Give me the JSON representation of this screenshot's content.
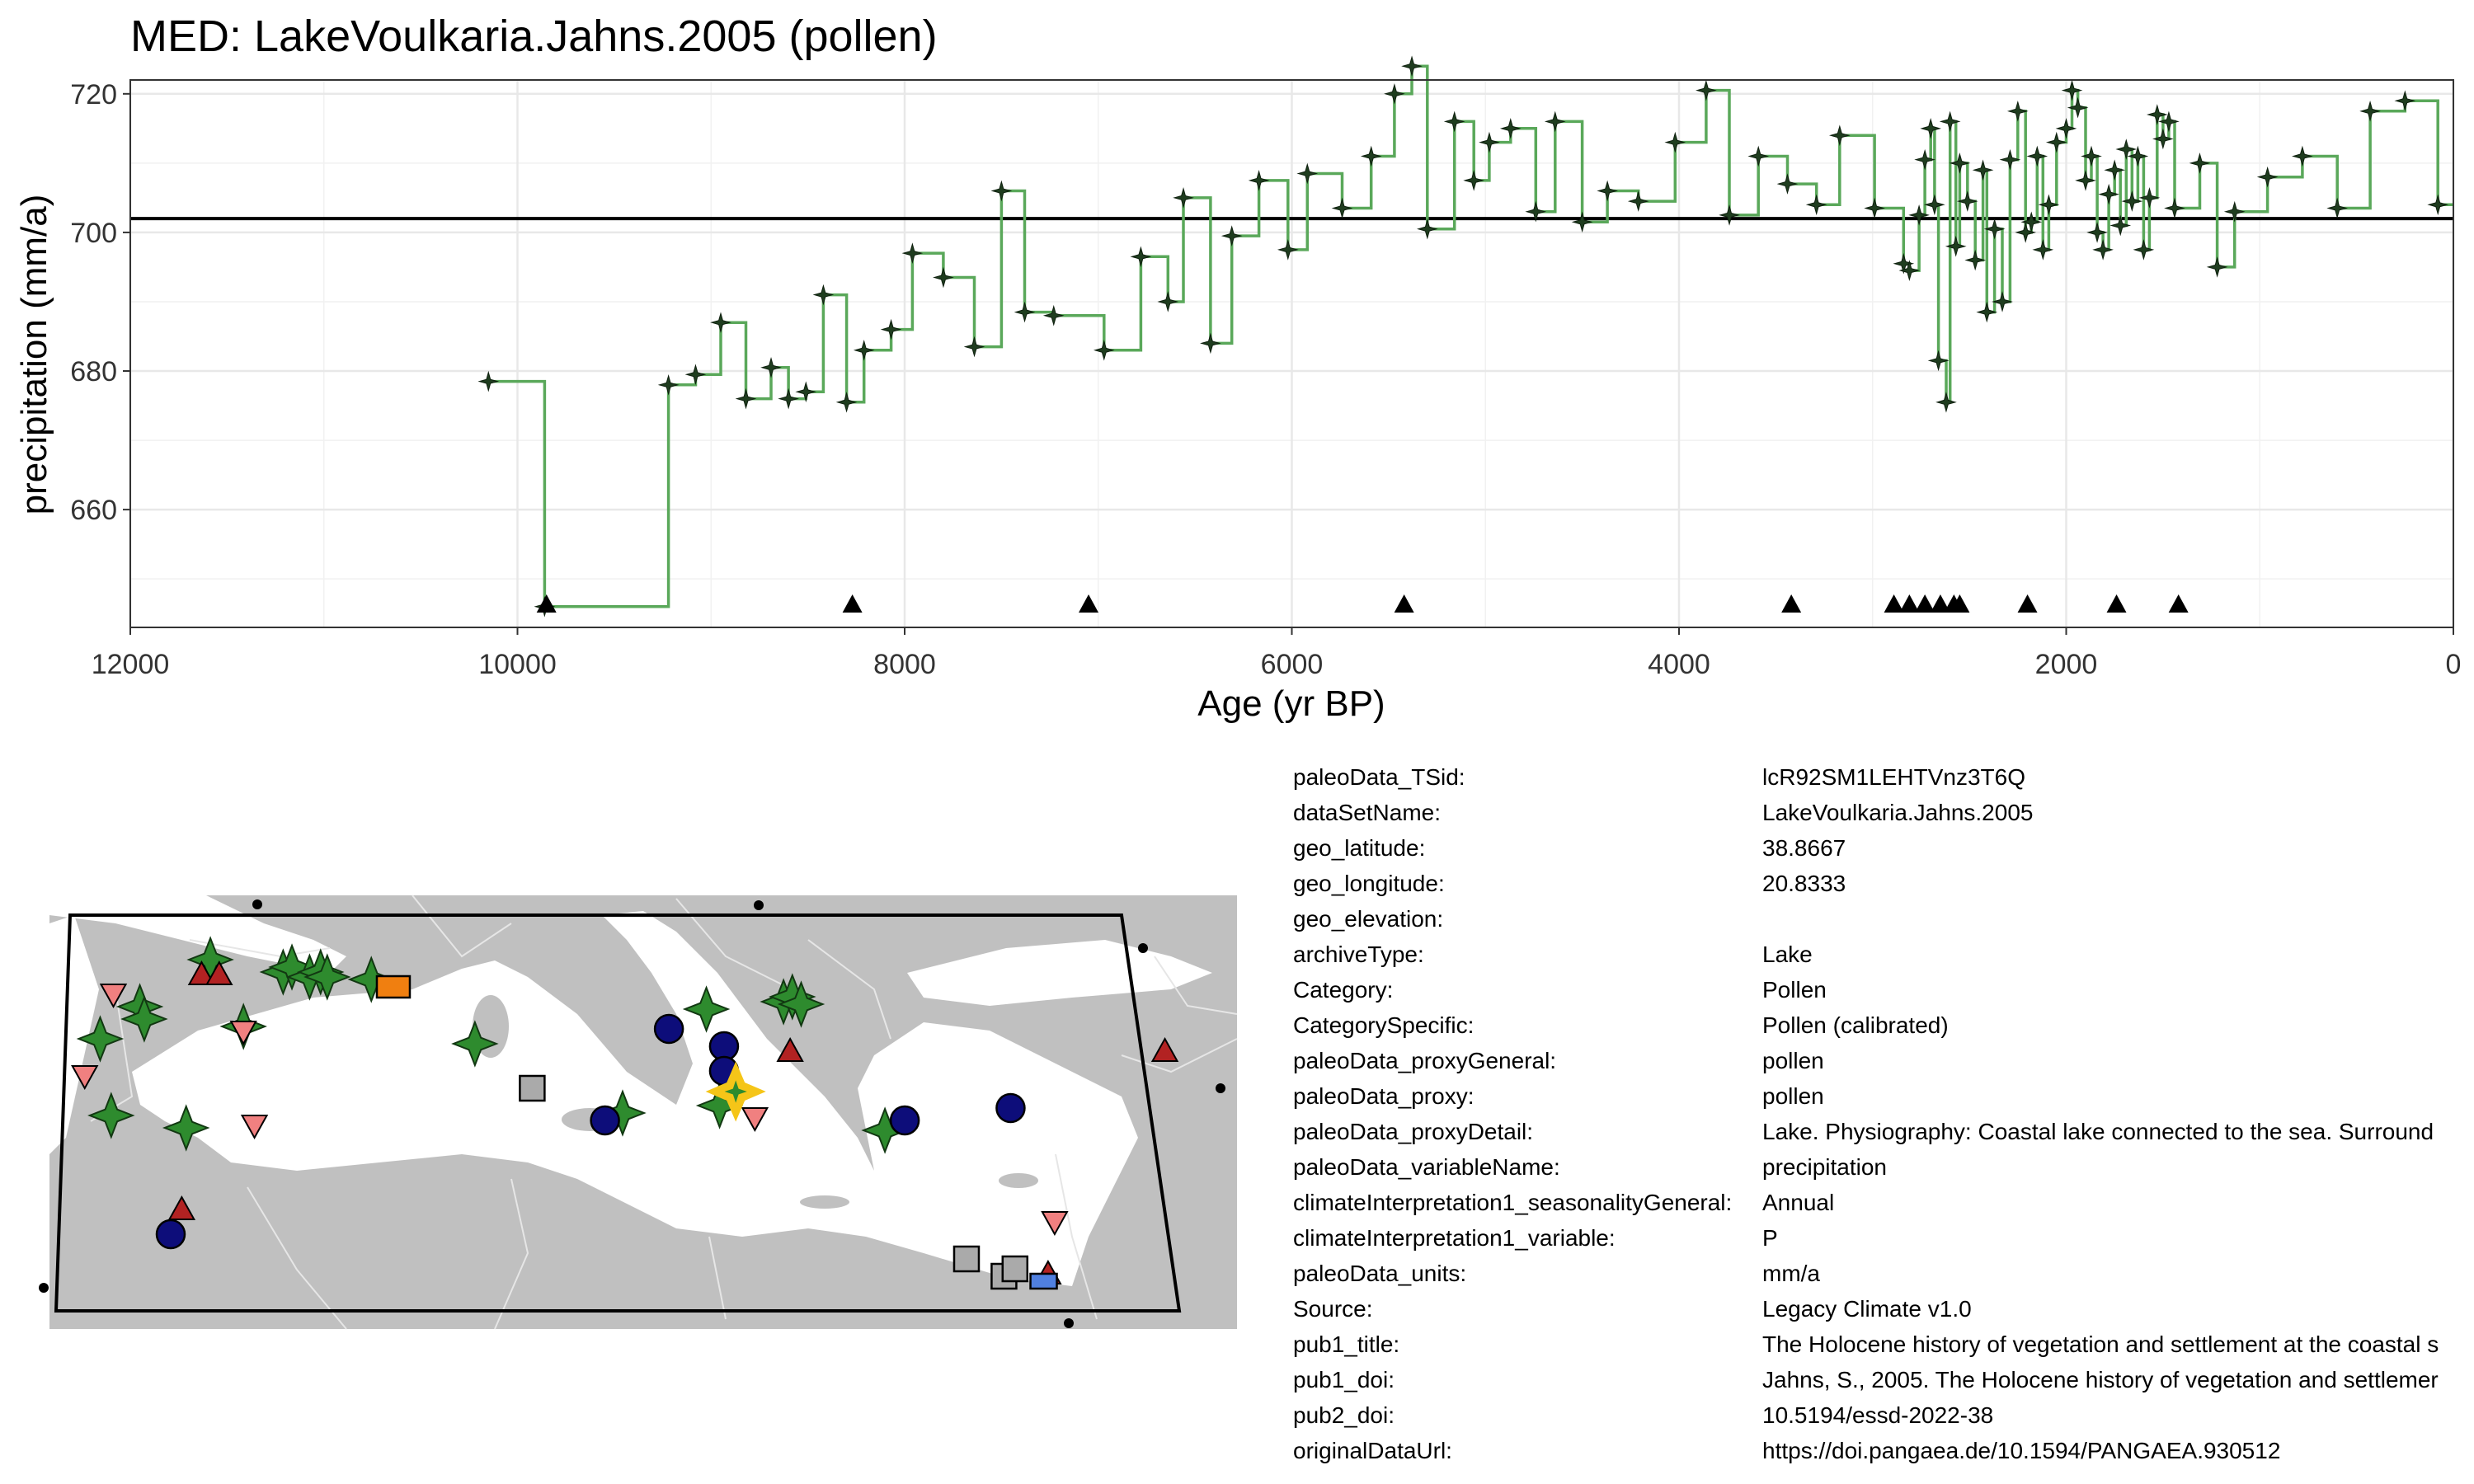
{
  "title": "MED: LakeVoulkaria.Jahns.2005 (pollen)",
  "colors": {
    "series_line": "#5aa85a",
    "marker": "#1f3d1f",
    "reference_line": "#000000",
    "grid": "#e8e8e8",
    "land": "#c0c0c0",
    "lake_star": "#2e8b2e",
    "circle": "#0d0d7a",
    "triangle_up": "#b22222",
    "triangle_down": "#f08080",
    "square": "#aaaaaa",
    "highlight": "#f5c518",
    "orange": "#f07f10",
    "blue": "#5080e0"
  },
  "chart_data": {
    "type": "line",
    "title": "MED: LakeVoulkaria.Jahns.2005 (pollen)",
    "xlabel": "Age (yr BP)",
    "ylabel": "precipitation (mm/a)",
    "xlim": [
      12000,
      0
    ],
    "ylim": [
      643,
      722
    ],
    "x_ticks": [
      12000,
      10000,
      8000,
      6000,
      4000,
      2000,
      0
    ],
    "y_ticks": [
      660,
      680,
      700,
      720
    ],
    "reference_line_y": 702,
    "grid": true,
    "legend": "none",
    "step": true,
    "series": [
      {
        "x": [
          10150,
          9860,
          9220,
          9080,
          8950,
          8820,
          8690,
          8600,
          8510,
          8420,
          8300,
          8210,
          8070,
          7960,
          7800,
          7640,
          7500,
          7380,
          7230,
          6970,
          6780,
          6640,
          6560,
          6420,
          6310,
          6170,
          6020,
          5920,
          5740,
          5590,
          5470,
          5380,
          5300,
          5160,
          5060,
          4980,
          4870,
          4740,
          4640,
          4500,
          4370,
          4210,
          4020,
          3860,
          3740,
          3590,
          3440,
          3290,
          3170,
          2990,
          2840,
          2810,
          2760,
          2730,
          2700,
          2680,
          2660,
          2620,
          2600,
          2570,
          2550,
          2510,
          2470,
          2430,
          2410,
          2370,
          2330,
          2290,
          2250,
          2210,
          2180,
          2150,
          2120,
          2090,
          2050,
          2000,
          1970,
          1940,
          1900,
          1870,
          1840,
          1810,
          1780,
          1750,
          1720,
          1690,
          1660,
          1630,
          1600,
          1570,
          1530,
          1500,
          1470,
          1440,
          1310,
          1220,
          1130,
          960,
          780,
          600,
          430,
          250,
          80
        ],
        "y": [
          678.5,
          646,
          678,
          679.5,
          687,
          676,
          680.5,
          676,
          677,
          691,
          675.5,
          683,
          686,
          697,
          693.5,
          683.5,
          706,
          688.5,
          688,
          683,
          696.5,
          690,
          705,
          684,
          699.5,
          707.5,
          697.5,
          708.5,
          703.5,
          711,
          720,
          724,
          700.5,
          716,
          707.5,
          713,
          715,
          703,
          716,
          701.5,
          706,
          704.5,
          713,
          720.5,
          702.5,
          711,
          707,
          704,
          714,
          703.5,
          695.5,
          694.5,
          702.5,
          710.5,
          715,
          704,
          681.5,
          675.5,
          716,
          698,
          710,
          704.5,
          696,
          709,
          688.5,
          700.5,
          690,
          710.5,
          717.5,
          700,
          701.5,
          711,
          697.5,
          704,
          713,
          715,
          720.5,
          718,
          707.5,
          711,
          700,
          697.5,
          705.5,
          709,
          701,
          712,
          704.5,
          711,
          697.5,
          705,
          717,
          713.5,
          716,
          703.5,
          710,
          695,
          703,
          708,
          711,
          703.5,
          717.5,
          719,
          704
        ]
      }
    ],
    "age_control_points_x": [
      9850,
      8270,
      7050,
      5420,
      3420,
      2890,
      2810,
      2730,
      2650,
      2580,
      2550,
      2200,
      1740,
      1420
    ]
  },
  "map": {
    "markers": [
      {
        "shape": "star",
        "lon": -7.5,
        "lat": 37.9
      },
      {
        "shape": "star",
        "lon": -8.0,
        "lat": 41.0
      },
      {
        "shape": "star",
        "lon": -6.2,
        "lat": 42.3
      },
      {
        "shape": "star",
        "lon": -6.0,
        "lat": 41.8
      },
      {
        "shape": "star",
        "lon": -3.0,
        "lat": 44.2
      },
      {
        "shape": "star",
        "lon": -1.5,
        "lat": 41.5
      },
      {
        "shape": "star",
        "lon": 0.3,
        "lat": 43.7
      },
      {
        "shape": "star",
        "lon": 0.7,
        "lat": 43.9
      },
      {
        "shape": "star",
        "lon": 1.5,
        "lat": 43.5
      },
      {
        "shape": "star",
        "lon": 2.0,
        "lat": 43.7
      },
      {
        "shape": "star",
        "lon": 2.3,
        "lat": 43.5
      },
      {
        "shape": "star",
        "lon": 4.3,
        "lat": 43.4
      },
      {
        "shape": "star",
        "lon": 9.0,
        "lat": 40.8
      },
      {
        "shape": "star",
        "lon": 15.7,
        "lat": 38.0
      },
      {
        "shape": "star",
        "lon": 19.5,
        "lat": 42.2
      },
      {
        "shape": "star",
        "lon": 20.1,
        "lat": 38.3
      },
      {
        "shape": "star",
        "lon": 23.0,
        "lat": 42.5
      },
      {
        "shape": "star",
        "lon": 23.4,
        "lat": 42.7
      },
      {
        "shape": "star",
        "lon": 23.8,
        "lat": 42.4
      },
      {
        "shape": "star",
        "lon": 27.6,
        "lat": 37.3
      },
      {
        "shape": "star",
        "lon": -4.1,
        "lat": 37.4
      },
      {
        "shape": "circle",
        "lon": 17.8,
        "lat": 41.4
      },
      {
        "shape": "circle",
        "lon": 20.3,
        "lat": 40.7
      },
      {
        "shape": "circle",
        "lon": 20.3,
        "lat": 39.7
      },
      {
        "shape": "circle",
        "lon": 14.9,
        "lat": 37.7
      },
      {
        "shape": "circle",
        "lon": 28.5,
        "lat": 37.7
      },
      {
        "shape": "circle",
        "lon": 33.3,
        "lat": 38.2
      },
      {
        "shape": "circle",
        "lon": -4.8,
        "lat": 33.1
      },
      {
        "shape": "triangle_up",
        "lon": -3.4,
        "lat": 43.6
      },
      {
        "shape": "triangle_up",
        "lon": -2.6,
        "lat": 43.6
      },
      {
        "shape": "triangle_up",
        "lon": 23.3,
        "lat": 40.5
      },
      {
        "shape": "triangle_up",
        "lon": 40.3,
        "lat": 40.5
      },
      {
        "shape": "triangle_up",
        "lon": -4.3,
        "lat": 34.1
      },
      {
        "shape": "triangle_up",
        "lon": 35.0,
        "lat": 31.5
      },
      {
        "shape": "triangle_down",
        "lon": -7.4,
        "lat": 42.8
      },
      {
        "shape": "triangle_down",
        "lon": -8.7,
        "lat": 39.5
      },
      {
        "shape": "triangle_down",
        "lon": -1.5,
        "lat": 41.3
      },
      {
        "shape": "triangle_down",
        "lon": -1.0,
        "lat": 37.5
      },
      {
        "shape": "triangle_down",
        "lon": 21.7,
        "lat": 37.8
      },
      {
        "shape": "triangle_down",
        "lon": 35.3,
        "lat": 33.6
      },
      {
        "shape": "square",
        "lon": 11.6,
        "lat": 39.0
      },
      {
        "shape": "square",
        "lon": 31.3,
        "lat": 32.1
      },
      {
        "shape": "square",
        "lon": 33.0,
        "lat": 31.4
      },
      {
        "shape": "square",
        "lon": 33.5,
        "lat": 31.7
      },
      {
        "shape": "orange_square",
        "lon": 5.3,
        "lat": 43.1
      },
      {
        "shape": "blue_square",
        "lon": 34.8,
        "lat": 31.2
      }
    ],
    "highlight": {
      "shape": "star",
      "lon": 20.8333,
      "lat": 38.8667
    }
  },
  "metadata": [
    {
      "key": "paleoData_TSid:",
      "value": "lcR92SM1LEHTVnz3T6Q"
    },
    {
      "key": "dataSetName:",
      "value": "LakeVoulkaria.Jahns.2005"
    },
    {
      "key": "geo_latitude:",
      "value": "38.8667"
    },
    {
      "key": "geo_longitude:",
      "value": "20.8333"
    },
    {
      "key": "geo_elevation:",
      "value": ""
    },
    {
      "key": "archiveType:",
      "value": "Lake"
    },
    {
      "key": "Category:",
      "value": "Pollen"
    },
    {
      "key": "CategorySpecific:",
      "value": "Pollen (calibrated)"
    },
    {
      "key": "paleoData_proxyGeneral:",
      "value": "pollen"
    },
    {
      "key": "paleoData_proxy:",
      "value": "pollen"
    },
    {
      "key": "paleoData_proxyDetail:",
      "value": "Lake. Physiography: Coastal lake connected to the sea. Surround"
    },
    {
      "key": "paleoData_variableName:",
      "value": "precipitation"
    },
    {
      "key": "climateInterpretation1_seasonalityGeneral:",
      "value": "Annual"
    },
    {
      "key": "climateInterpretation1_variable:",
      "value": "P"
    },
    {
      "key": "paleoData_units:",
      "value": "mm/a"
    },
    {
      "key": "Source:",
      "value": "Legacy Climate v1.0"
    },
    {
      "key": "pub1_title:",
      "value": "The Holocene history of vegetation and settlement at the coastal s"
    },
    {
      "key": "pub1_doi:",
      "value": "Jahns, S., 2005. The Holocene history of vegetation and settlemer"
    },
    {
      "key": "pub2_doi:",
      "value": "10.5194/essd-2022-38"
    },
    {
      "key": "originalDataUrl:",
      "value": "https://doi.pangaea.de/10.1594/PANGAEA.930512"
    }
  ]
}
